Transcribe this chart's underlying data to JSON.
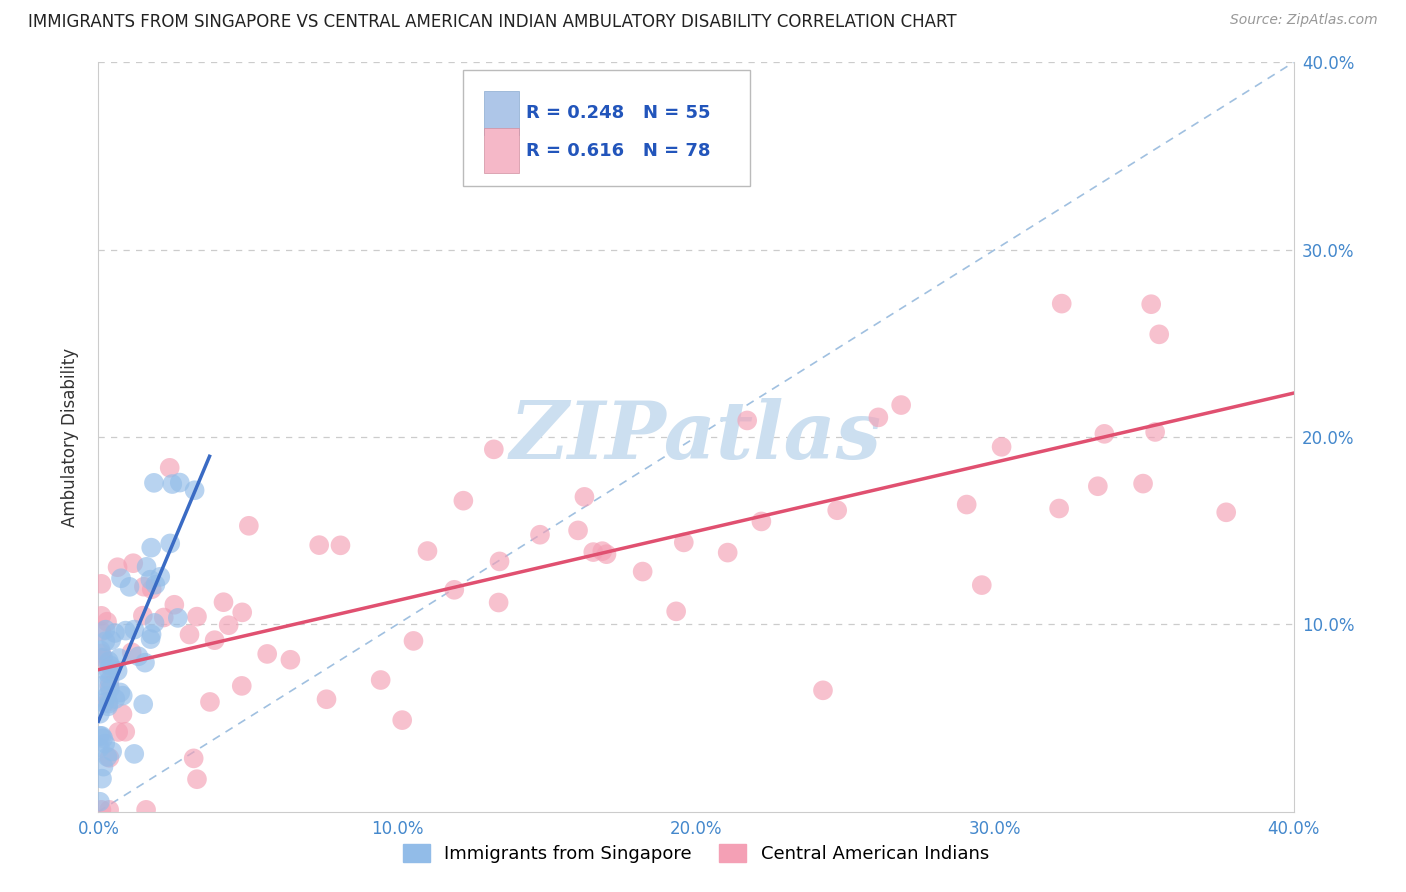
{
  "title": "IMMIGRANTS FROM SINGAPORE VS CENTRAL AMERICAN INDIAN AMBULATORY DISABILITY CORRELATION CHART",
  "source": "Source: ZipAtlas.com",
  "ylabel": "Ambulatory Disability",
  "xlim": [
    0.0,
    0.4
  ],
  "ylim": [
    0.0,
    0.4
  ],
  "xticks": [
    0.0,
    0.1,
    0.2,
    0.3,
    0.4
  ],
  "yticks": [
    0.0,
    0.1,
    0.2,
    0.3,
    0.4
  ],
  "series1_color": "#92bce8",
  "series2_color": "#f4a0b5",
  "series1_label": "Immigrants from Singapore",
  "series2_label": "Central American Indians",
  "R1": 0.248,
  "N1": 55,
  "R2": 0.616,
  "N2": 78,
  "trend1_color": "#3a6bc4",
  "trend2_color": "#e05070",
  "watermark_color": "#ccdff0",
  "legend_box_color1": "#aec6e8",
  "legend_box_color2": "#f5b8c8",
  "diag_color": "#a0c0e0"
}
